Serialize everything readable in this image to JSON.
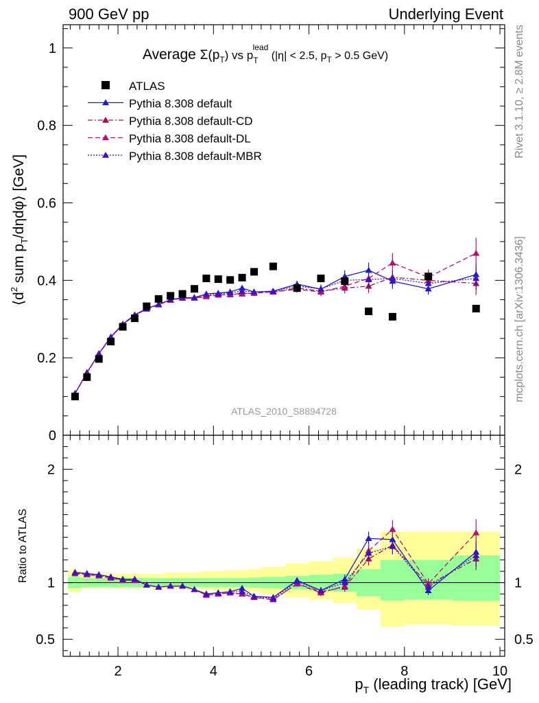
{
  "header": {
    "left": "900 GeV pp",
    "right": "Underlying Event"
  },
  "side_labels": {
    "rivet": "Rivet 3.1.10, ≥ 2.8M events",
    "mcplots": "mcplots.cern.ch [arXiv:1306.3436]"
  },
  "watermark": "ATLAS_2010_S8894728",
  "chart_data": {
    "type": "scatter",
    "title_prefix": "Average ",
    "title_sigma": "Σ(p",
    "title_sigma_sub": "T",
    "title_mid": ") vs p",
    "title_mid_sub": "T",
    "title_mid_sup": "lead",
    "title_suffix": " (|η| < 2.5, p",
    "title_suffix_sub": "T",
    "title_end": " > 0.5 GeV)",
    "xlabel_main": "p",
    "xlabel_sub": "T",
    "xlabel_rest": " (leading track) [GeV]",
    "ylabel": "⟨d² sum p_T/dηdφ⟩ [GeV]",
    "ylabel_parts": {
      "open": "⟨d",
      "sup": "2",
      "mid": " sum p",
      "sub": "T",
      "end": "/dηdφ⟩ [GeV]"
    },
    "ratio_ylabel": "Ratio to ATLAS",
    "xlim": [
      0.85,
      10.1
    ],
    "ylim": [
      0,
      1.06
    ],
    "ratio_ylim": [
      0.35,
      2.3
    ],
    "x_ticks": [
      2,
      4,
      6,
      8,
      10
    ],
    "x_tick_labels": [
      "2",
      "4",
      "6",
      "8",
      "10"
    ],
    "y_ticks": [
      0,
      0.2,
      0.4,
      0.6,
      0.8,
      1
    ],
    "y_tick_labels": [
      "0",
      "0.2",
      "0.4",
      "0.6",
      "0.8",
      "1"
    ],
    "ratio_y_ticks": [
      0.5,
      1,
      2
    ],
    "ratio_y_tick_labels": [
      "0.5",
      "1",
      "2"
    ],
    "legend_position": "top-left",
    "grid": false,
    "data": {
      "name": "ATLAS",
      "color": "#000000",
      "x": [
        1.1,
        1.35,
        1.6,
        1.85,
        2.1,
        2.35,
        2.6,
        2.85,
        3.1,
        3.35,
        3.6,
        3.85,
        4.1,
        4.35,
        4.6,
        4.85,
        5.25,
        5.75,
        6.25,
        6.75,
        7.25,
        7.75,
        8.5,
        9.5
      ],
      "y": [
        0.1,
        0.15,
        0.197,
        0.242,
        0.28,
        0.302,
        0.333,
        0.352,
        0.36,
        0.365,
        0.378,
        0.405,
        0.403,
        0.401,
        0.407,
        0.422,
        0.436,
        0.38,
        0.405,
        0.398,
        0.32,
        0.306,
        0.41,
        0.327
      ]
    },
    "bands": {
      "edges": [
        0.95,
        1.225,
        1.475,
        1.725,
        1.975,
        2.225,
        2.475,
        2.725,
        2.975,
        3.225,
        3.475,
        3.725,
        3.975,
        4.225,
        4.475,
        4.725,
        5.0,
        5.5,
        6.0,
        6.5,
        7.0,
        7.5,
        8.0,
        9.0,
        10.0
      ],
      "inner": [
        [
          0.95,
          1.05
        ],
        [
          0.96,
          1.04
        ],
        [
          0.96,
          1.04
        ],
        [
          0.96,
          1.04
        ],
        [
          0.96,
          1.04
        ],
        [
          0.96,
          1.04
        ],
        [
          0.96,
          1.04
        ],
        [
          0.96,
          1.04
        ],
        [
          0.96,
          1.04
        ],
        [
          0.96,
          1.04
        ],
        [
          0.96,
          1.04
        ],
        [
          0.96,
          1.04
        ],
        [
          0.96,
          1.04
        ],
        [
          0.96,
          1.04
        ],
        [
          0.96,
          1.04
        ],
        [
          0.955,
          1.045
        ],
        [
          0.95,
          1.05
        ],
        [
          0.94,
          1.06
        ],
        [
          0.93,
          1.07
        ],
        [
          0.92,
          1.08
        ],
        [
          0.88,
          1.12
        ],
        [
          0.84,
          1.2
        ],
        [
          0.85,
          1.2
        ],
        [
          0.84,
          1.24
        ]
      ],
      "outer": [
        [
          0.92,
          1.11
        ],
        [
          0.95,
          1.08
        ],
        [
          0.95,
          1.08
        ],
        [
          0.95,
          1.08
        ],
        [
          0.95,
          1.08
        ],
        [
          0.95,
          1.08
        ],
        [
          0.95,
          1.08
        ],
        [
          0.95,
          1.08
        ],
        [
          0.95,
          1.09
        ],
        [
          0.95,
          1.09
        ],
        [
          0.94,
          1.09
        ],
        [
          0.94,
          1.1
        ],
        [
          0.93,
          1.1
        ],
        [
          0.93,
          1.11
        ],
        [
          0.93,
          1.11
        ],
        [
          0.92,
          1.12
        ],
        [
          0.9,
          1.14
        ],
        [
          0.87,
          1.17
        ],
        [
          0.85,
          1.19
        ],
        [
          0.82,
          1.22
        ],
        [
          0.76,
          1.3
        ],
        [
          0.61,
          1.45
        ],
        [
          0.63,
          1.45
        ],
        [
          0.62,
          1.45
        ]
      ]
    },
    "series": [
      {
        "name": "Pythia 8.308 default",
        "color": "#1a1acc",
        "style": "solid",
        "x": [
          1.1,
          1.35,
          1.6,
          1.85,
          2.1,
          2.35,
          2.6,
          2.85,
          3.1,
          3.35,
          3.6,
          3.85,
          4.1,
          4.35,
          4.6,
          4.85,
          5.25,
          5.75,
          6.25,
          6.75,
          7.25,
          7.75,
          8.5,
          9.5
        ],
        "y": [
          0.108,
          0.162,
          0.211,
          0.254,
          0.287,
          0.311,
          0.327,
          0.338,
          0.35,
          0.355,
          0.355,
          0.365,
          0.367,
          0.37,
          0.38,
          0.37,
          0.372,
          0.39,
          0.377,
          0.41,
          0.426,
          0.398,
          0.378,
          0.415
        ],
        "err": [
          0.003,
          0.003,
          0.003,
          0.003,
          0.003,
          0.003,
          0.003,
          0.003,
          0.003,
          0.004,
          0.004,
          0.005,
          0.005,
          0.006,
          0.007,
          0.007,
          0.007,
          0.009,
          0.011,
          0.016,
          0.02,
          0.02,
          0.015,
          0.03
        ],
        "ratio": [
          1.09,
          1.08,
          1.07,
          1.05,
          1.03,
          1.03,
          0.98,
          0.96,
          0.97,
          0.97,
          0.94,
          0.9,
          0.91,
          0.92,
          0.95,
          0.88,
          0.87,
          1.02,
          0.93,
          1.03,
          1.39,
          1.38,
          0.93,
          1.27
        ],
        "ratio_err": [
          0.01,
          0.01,
          0.01,
          0.01,
          0.01,
          0.01,
          0.01,
          0.01,
          0.01,
          0.01,
          0.01,
          0.01,
          0.015,
          0.015,
          0.02,
          0.02,
          0.02,
          0.025,
          0.03,
          0.04,
          0.06,
          0.07,
          0.04,
          0.1
        ]
      },
      {
        "name": "Pythia 8.308 default-CD",
        "color": "#a01050",
        "style": "dashdot",
        "x": [
          1.1,
          1.35,
          1.6,
          1.85,
          2.1,
          2.35,
          2.6,
          2.85,
          3.1,
          3.35,
          3.6,
          3.85,
          4.1,
          4.35,
          4.6,
          4.85,
          5.25,
          5.75,
          6.25,
          6.75,
          7.25,
          7.75,
          8.5,
          9.5
        ],
        "y": [
          0.108,
          0.161,
          0.21,
          0.253,
          0.286,
          0.31,
          0.326,
          0.337,
          0.349,
          0.354,
          0.354,
          0.36,
          0.362,
          0.363,
          0.365,
          0.367,
          0.37,
          0.38,
          0.372,
          0.38,
          0.385,
          0.408,
          0.4,
          0.392
        ],
        "err": [
          0.003,
          0.003,
          0.003,
          0.003,
          0.003,
          0.003,
          0.003,
          0.003,
          0.003,
          0.004,
          0.004,
          0.005,
          0.005,
          0.006,
          0.007,
          0.007,
          0.007,
          0.009,
          0.011,
          0.014,
          0.018,
          0.02,
          0.018,
          0.03
        ],
        "ratio": [
          1.08,
          1.08,
          1.06,
          1.05,
          1.02,
          1.02,
          0.98,
          0.96,
          0.97,
          0.97,
          0.94,
          0.89,
          0.9,
          0.91,
          0.9,
          0.87,
          0.85,
          0.99,
          0.92,
          0.96,
          1.21,
          1.33,
          0.98,
          1.21
        ],
        "ratio_err": [
          0.01,
          0.01,
          0.01,
          0.01,
          0.01,
          0.01,
          0.01,
          0.01,
          0.01,
          0.01,
          0.01,
          0.01,
          0.015,
          0.015,
          0.02,
          0.02,
          0.02,
          0.025,
          0.03,
          0.04,
          0.06,
          0.07,
          0.05,
          0.1
        ]
      },
      {
        "name": "Pythia 8.308 default-DL",
        "color": "#b01070",
        "style": "dashed",
        "x": [
          1.1,
          1.35,
          1.6,
          1.85,
          2.1,
          2.35,
          2.6,
          2.85,
          3.1,
          3.35,
          3.6,
          3.85,
          4.1,
          4.35,
          4.6,
          4.85,
          5.25,
          5.75,
          6.25,
          6.75,
          7.25,
          7.75,
          8.5,
          9.5
        ],
        "y": [
          0.107,
          0.161,
          0.21,
          0.253,
          0.286,
          0.309,
          0.326,
          0.337,
          0.349,
          0.354,
          0.354,
          0.358,
          0.362,
          0.364,
          0.366,
          0.367,
          0.37,
          0.377,
          0.37,
          0.385,
          0.405,
          0.445,
          0.408,
          0.47
        ],
        "err": [
          0.003,
          0.003,
          0.003,
          0.003,
          0.003,
          0.003,
          0.003,
          0.003,
          0.003,
          0.004,
          0.004,
          0.005,
          0.005,
          0.006,
          0.007,
          0.007,
          0.007,
          0.009,
          0.011,
          0.014,
          0.018,
          0.025,
          0.02,
          0.04
        ],
        "ratio": [
          1.08,
          1.07,
          1.06,
          1.04,
          1.02,
          1.02,
          0.98,
          0.96,
          0.97,
          0.97,
          0.94,
          0.89,
          0.9,
          0.91,
          0.9,
          0.87,
          0.85,
          0.99,
          0.91,
          0.97,
          1.28,
          1.47,
          0.99,
          1.44
        ],
        "ratio_err": [
          0.01,
          0.01,
          0.01,
          0.01,
          0.01,
          0.01,
          0.01,
          0.01,
          0.01,
          0.01,
          0.01,
          0.01,
          0.015,
          0.015,
          0.02,
          0.02,
          0.02,
          0.025,
          0.03,
          0.04,
          0.06,
          0.08,
          0.05,
          0.12
        ]
      },
      {
        "name": "Pythia 8.308 default-MBR",
        "color": "#4010c0",
        "style": "dotted",
        "x": [
          1.1,
          1.35,
          1.6,
          1.85,
          2.1,
          2.35,
          2.6,
          2.85,
          3.1,
          3.35,
          3.6,
          3.85,
          4.1,
          4.35,
          4.6,
          4.85,
          5.25,
          5.75,
          6.25,
          6.75,
          7.25,
          7.75,
          8.5,
          9.5
        ],
        "y": [
          0.108,
          0.162,
          0.211,
          0.254,
          0.287,
          0.31,
          0.327,
          0.338,
          0.35,
          0.355,
          0.356,
          0.364,
          0.365,
          0.368,
          0.372,
          0.37,
          0.372,
          0.385,
          0.378,
          0.4,
          0.402,
          0.405,
          0.392,
          0.405
        ],
        "err": [
          0.003,
          0.003,
          0.003,
          0.003,
          0.003,
          0.003,
          0.003,
          0.003,
          0.003,
          0.004,
          0.004,
          0.005,
          0.005,
          0.006,
          0.007,
          0.007,
          0.007,
          0.009,
          0.011,
          0.014,
          0.018,
          0.02,
          0.016,
          0.03
        ],
        "ratio": [
          1.09,
          1.08,
          1.07,
          1.05,
          1.03,
          1.03,
          0.98,
          0.96,
          0.97,
          0.97,
          0.94,
          0.9,
          0.91,
          0.92,
          0.92,
          0.88,
          0.86,
          1.01,
          0.93,
          1.0,
          1.26,
          1.32,
          0.96,
          1.24
        ],
        "ratio_err": [
          0.01,
          0.01,
          0.01,
          0.01,
          0.01,
          0.01,
          0.01,
          0.01,
          0.01,
          0.01,
          0.01,
          0.01,
          0.015,
          0.015,
          0.02,
          0.02,
          0.02,
          0.025,
          0.03,
          0.04,
          0.06,
          0.07,
          0.05,
          0.1
        ]
      }
    ]
  }
}
